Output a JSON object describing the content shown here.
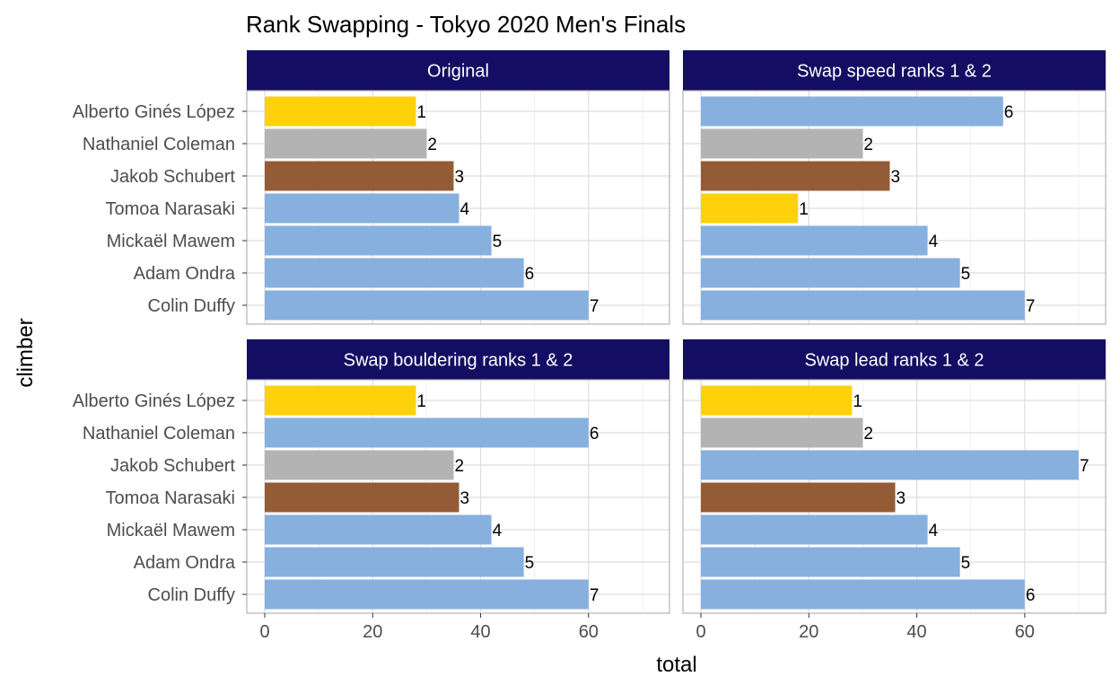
{
  "chart_data": {
    "type": "bar",
    "orientation": "horizontal",
    "title": "Rank Swapping - Tokyo 2020 Men's Finals",
    "xlabel": "total",
    "ylabel": "climber",
    "xlim": [
      0,
      73
    ],
    "x_ticks": [
      0,
      20,
      40,
      60
    ],
    "grid": true,
    "categories": [
      "Alberto Ginés López",
      "Nathaniel Coleman",
      "Jakob Schubert",
      "Tomoa Narasaki",
      "Mickaël Mawem",
      "Adam Ondra",
      "Colin Duffy"
    ],
    "colors": {
      "gold": "#ffd10a",
      "silver": "#b3b3b3",
      "bronze": "#945c36",
      "other": "#87b0df",
      "strip": "#130e63"
    },
    "panels": [
      {
        "name": "Original",
        "values": [
          28,
          30,
          35,
          36,
          42,
          48,
          60
        ],
        "ranks": [
          "1",
          "2",
          "3",
          "4",
          "5",
          "6",
          "7"
        ],
        "medals": [
          "gold",
          "silver",
          "bronze",
          "other",
          "other",
          "other",
          "other"
        ]
      },
      {
        "name": "Swap speed ranks 1 & 2",
        "values": [
          56,
          30,
          35,
          18,
          42,
          48,
          60
        ],
        "ranks": [
          "6",
          "2",
          "3",
          "1",
          "4",
          "5",
          "7"
        ],
        "medals": [
          "other",
          "silver",
          "bronze",
          "gold",
          "other",
          "other",
          "other"
        ]
      },
      {
        "name": "Swap bouldering ranks 1 & 2",
        "values": [
          28,
          60,
          35,
          36,
          42,
          48,
          60
        ],
        "ranks": [
          "1",
          "6",
          "2",
          "3",
          "4",
          "5",
          "7"
        ],
        "medals": [
          "gold",
          "other",
          "silver",
          "bronze",
          "other",
          "other",
          "other"
        ]
      },
      {
        "name": "Swap lead ranks 1 & 2",
        "values": [
          28,
          30,
          70,
          36,
          42,
          48,
          60
        ],
        "ranks": [
          "1",
          "2",
          "7",
          "3",
          "4",
          "5",
          "6"
        ],
        "medals": [
          "gold",
          "silver",
          "other",
          "bronze",
          "other",
          "other",
          "other"
        ]
      }
    ]
  }
}
